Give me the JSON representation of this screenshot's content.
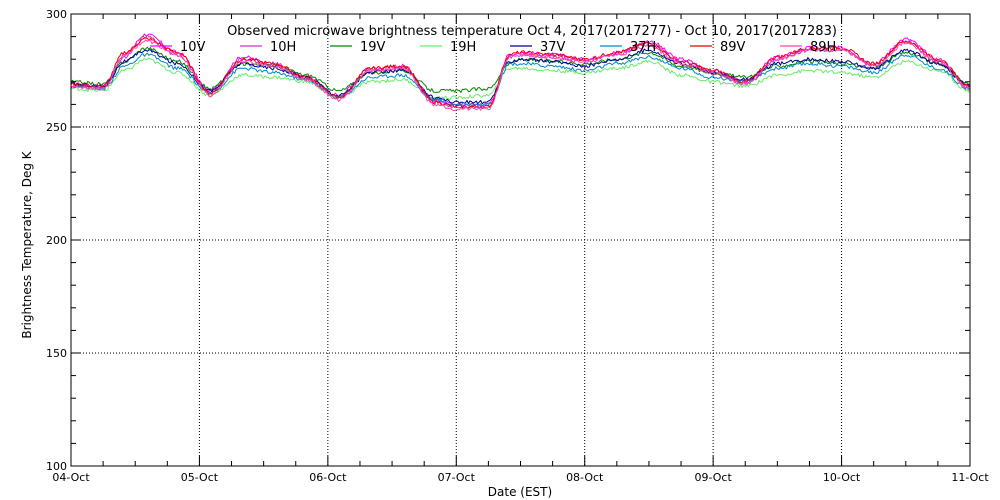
{
  "chart_data": {
    "type": "line",
    "title": "Observed microwave brightness temperature Oct  4, 2017(2017277) - Oct 10, 2017(2017283)",
    "xlabel": "Date (EST)",
    "ylabel": "Brightness Temperature, Deg K",
    "x_tick_labels": [
      "04-Oct",
      "05-Oct",
      "06-Oct",
      "07-Oct",
      "08-Oct",
      "09-Oct",
      "10-Oct",
      "11-Oct"
    ],
    "y_ticks": [
      100,
      150,
      200,
      250,
      300
    ],
    "ylim": [
      100,
      300
    ],
    "xlim": [
      "2017-10-04",
      "2017-10-11"
    ],
    "grid": true,
    "legend_position": "top",
    "x": [
      "2017-10-04 00:00",
      "2017-10-04 06:00",
      "2017-10-04 10:00",
      "2017-10-04 14:00",
      "2017-10-04 20:00",
      "2017-10-05 02:00",
      "2017-10-05 08:00",
      "2017-10-05 14:00",
      "2017-10-05 20:00",
      "2017-10-06 02:00",
      "2017-10-06 08:00",
      "2017-10-06 14:00",
      "2017-10-06 20:00",
      "2017-10-07 00:00",
      "2017-10-07 06:00",
      "2017-10-07 10:00",
      "2017-10-07 12:00",
      "2017-10-07 18:00",
      "2017-10-08 00:00",
      "2017-10-08 06:00",
      "2017-10-08 12:00",
      "2017-10-08 18:00",
      "2017-10-09 00:00",
      "2017-10-09 06:00",
      "2017-10-09 12:00",
      "2017-10-09 18:00",
      "2017-10-10 00:00",
      "2017-10-10 06:00",
      "2017-10-10 12:00",
      "2017-10-10 18:00",
      "2017-10-11 00:00"
    ],
    "series": [
      {
        "name": "10V",
        "color": "#ff00ff",
        "values": [
          269,
          268,
          282,
          291,
          283,
          266,
          281,
          278,
          272,
          264,
          276,
          277,
          262,
          260,
          260,
          282,
          283,
          282,
          280,
          283,
          288,
          280,
          275,
          270,
          281,
          285,
          285,
          278,
          289,
          280,
          268
        ]
      },
      {
        "name": "10H",
        "color": "#cc33cc",
        "values": [
          268,
          267,
          281,
          290,
          282,
          265,
          280,
          277,
          271,
          263,
          275,
          276,
          261,
          259,
          259,
          281,
          282,
          281,
          279,
          282,
          287,
          279,
          274,
          269,
          280,
          284,
          284,
          277,
          288,
          279,
          267
        ]
      },
      {
        "name": "19V",
        "color": "#008800",
        "values": [
          270,
          269,
          279,
          285,
          279,
          267,
          278,
          277,
          273,
          266,
          274,
          275,
          266,
          266,
          267,
          278,
          280,
          279,
          278,
          280,
          283,
          277,
          274,
          272,
          277,
          279,
          278,
          276,
          283,
          278,
          269
        ]
      },
      {
        "name": "19H",
        "color": "#66ee66",
        "values": [
          267,
          266,
          275,
          280,
          274,
          264,
          273,
          272,
          270,
          263,
          270,
          271,
          263,
          263,
          264,
          276,
          276,
          275,
          274,
          276,
          279,
          273,
          270,
          268,
          273,
          275,
          274,
          272,
          279,
          275,
          266
        ]
      },
      {
        "name": "37V",
        "color": "#000099",
        "values": [
          269,
          268,
          279,
          284,
          278,
          266,
          278,
          276,
          272,
          264,
          274,
          275,
          263,
          261,
          261,
          279,
          280,
          279,
          277,
          280,
          284,
          278,
          274,
          271,
          278,
          280,
          279,
          276,
          284,
          278,
          268
        ]
      },
      {
        "name": "37H",
        "color": "#0088cc",
        "values": [
          268,
          267,
          277,
          282,
          276,
          265,
          276,
          274,
          271,
          263,
          272,
          273,
          262,
          260,
          260,
          278,
          278,
          277,
          275,
          278,
          281,
          276,
          272,
          270,
          276,
          278,
          277,
          274,
          282,
          276,
          267
        ]
      },
      {
        "name": "89V",
        "color": "#ee0000",
        "values": [
          269,
          268,
          283,
          289,
          283,
          265,
          280,
          278,
          272,
          263,
          276,
          277,
          261,
          259,
          259,
          282,
          283,
          282,
          280,
          283,
          287,
          279,
          275,
          270,
          281,
          285,
          285,
          278,
          288,
          280,
          268
        ]
      },
      {
        "name": "89H",
        "color": "#ff44aa",
        "values": [
          268,
          267,
          282,
          288,
          282,
          264,
          279,
          277,
          271,
          262,
          275,
          276,
          260,
          258,
          258,
          281,
          282,
          281,
          279,
          282,
          286,
          278,
          274,
          269,
          280,
          284,
          284,
          277,
          287,
          279,
          267
        ]
      }
    ]
  }
}
